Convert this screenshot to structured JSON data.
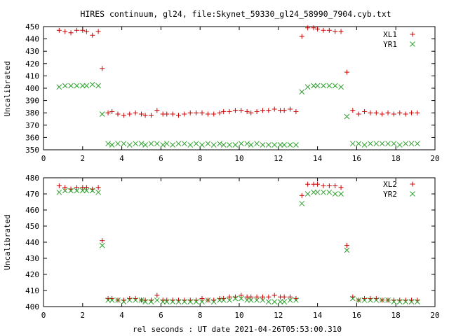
{
  "colors": {
    "series_xl": "#cc0000",
    "series_yr": "#2ca02c",
    "axes": "#000000",
    "background": "#ffffff"
  },
  "chart_data": [
    {
      "type": "scatter",
      "title": "HIRES continuum, gl24, file:Skynet_59330_gl24_58990_7904.cyb.txt",
      "xlabel": "",
      "ylabel": "Uncalibrated",
      "xlim": [
        0,
        20
      ],
      "ylim": [
        350,
        450
      ],
      "xticks": [
        0,
        2,
        4,
        6,
        8,
        10,
        12,
        14,
        16,
        18,
        20
      ],
      "yticks": [
        350,
        360,
        370,
        380,
        390,
        400,
        410,
        420,
        430,
        440,
        450
      ],
      "grid": false,
      "legend_position": "top-right",
      "series": [
        {
          "name": "XL1",
          "marker": "plus",
          "x": [
            0.8,
            1.1,
            1.4,
            1.7,
            2.0,
            2.2,
            2.5,
            2.8,
            3.0,
            3.3,
            3.5,
            3.8,
            4.1,
            4.4,
            4.7,
            5.0,
            5.2,
            5.5,
            5.8,
            6.1,
            6.3,
            6.6,
            6.9,
            7.2,
            7.5,
            7.8,
            8.1,
            8.4,
            8.7,
            9.0,
            9.2,
            9.5,
            9.8,
            10.1,
            10.4,
            10.6,
            10.9,
            11.2,
            11.5,
            11.8,
            12.1,
            12.3,
            12.6,
            12.9,
            13.2,
            13.5,
            13.8,
            14.0,
            14.3,
            14.6,
            14.9,
            15.2,
            15.5,
            15.8,
            16.1,
            16.4,
            16.7,
            17.0,
            17.3,
            17.6,
            17.9,
            18.2,
            18.5,
            18.8,
            19.1
          ],
          "y": [
            447,
            446,
            445,
            447,
            447,
            446,
            443,
            446,
            416,
            380,
            381,
            379,
            378,
            379,
            380,
            379,
            378,
            378,
            382,
            379,
            379,
            379,
            378,
            379,
            380,
            380,
            380,
            379,
            379,
            380,
            381,
            381,
            382,
            382,
            381,
            380,
            381,
            382,
            382,
            383,
            382,
            382,
            383,
            381,
            442,
            449,
            449,
            448,
            447,
            447,
            446,
            446,
            413,
            382,
            379,
            381,
            380,
            380,
            379,
            380,
            379,
            380,
            379,
            380,
            380
          ]
        },
        {
          "name": "YR1",
          "marker": "cross",
          "x": [
            0.8,
            1.1,
            1.4,
            1.7,
            2.0,
            2.2,
            2.5,
            2.8,
            3.0,
            3.3,
            3.5,
            3.8,
            4.1,
            4.4,
            4.7,
            5.0,
            5.2,
            5.5,
            5.8,
            6.1,
            6.3,
            6.6,
            6.9,
            7.2,
            7.5,
            7.8,
            8.1,
            8.4,
            8.7,
            9.0,
            9.2,
            9.5,
            9.8,
            10.1,
            10.4,
            10.6,
            10.9,
            11.2,
            11.5,
            11.8,
            12.1,
            12.3,
            12.6,
            12.9,
            13.2,
            13.5,
            13.8,
            14.0,
            14.3,
            14.6,
            14.9,
            15.2,
            15.5,
            15.8,
            16.1,
            16.4,
            16.7,
            17.0,
            17.3,
            17.6,
            17.9,
            18.2,
            18.5,
            18.8,
            19.1
          ],
          "y": [
            401,
            402,
            402,
            402,
            402,
            402,
            403,
            402,
            379,
            355,
            354,
            355,
            355,
            354,
            355,
            355,
            354,
            355,
            355,
            354,
            355,
            354,
            355,
            355,
            354,
            355,
            354,
            355,
            354,
            355,
            354,
            354,
            354,
            355,
            355,
            354,
            355,
            354,
            354,
            354,
            354,
            354,
            354,
            354,
            397,
            401,
            402,
            402,
            402,
            402,
            402,
            401,
            377,
            355,
            355,
            354,
            355,
            355,
            355,
            355,
            355,
            354,
            355,
            355,
            355
          ]
        }
      ]
    },
    {
      "type": "scatter",
      "title": "",
      "xlabel": "rel seconds : UT date 2021-04-26T05:53:00.310",
      "ylabel": "Uncalibrated",
      "xlim": [
        0,
        20
      ],
      "ylim": [
        400,
        480
      ],
      "xticks": [
        0,
        2,
        4,
        6,
        8,
        10,
        12,
        14,
        16,
        18,
        20
      ],
      "yticks": [
        400,
        410,
        420,
        430,
        440,
        450,
        460,
        470,
        480
      ],
      "grid": false,
      "legend_position": "top-right",
      "series": [
        {
          "name": "XL2",
          "marker": "plus",
          "x": [
            0.8,
            1.1,
            1.4,
            1.7,
            2.0,
            2.2,
            2.5,
            2.8,
            3.0,
            3.3,
            3.5,
            3.8,
            4.1,
            4.4,
            4.7,
            5.0,
            5.2,
            5.5,
            5.8,
            6.1,
            6.3,
            6.6,
            6.9,
            7.2,
            7.5,
            7.8,
            8.1,
            8.4,
            8.7,
            9.0,
            9.2,
            9.5,
            9.8,
            10.1,
            10.4,
            10.6,
            10.9,
            11.2,
            11.5,
            11.8,
            12.1,
            12.3,
            12.6,
            12.9,
            13.2,
            13.5,
            13.8,
            14.0,
            14.3,
            14.6,
            14.9,
            15.2,
            15.5,
            15.8,
            16.1,
            16.4,
            16.7,
            17.0,
            17.3,
            17.6,
            17.9,
            18.2,
            18.5,
            18.8,
            19.1
          ],
          "y": [
            475,
            474,
            473,
            474,
            474,
            474,
            473,
            474,
            441,
            405,
            405,
            404,
            404,
            405,
            405,
            404,
            404,
            404,
            407,
            404,
            404,
            404,
            404,
            404,
            404,
            404,
            405,
            404,
            404,
            405,
            405,
            406,
            406,
            407,
            406,
            406,
            406,
            406,
            406,
            407,
            406,
            406,
            406,
            405,
            469,
            476,
            476,
            476,
            475,
            475,
            475,
            474,
            438,
            406,
            404,
            405,
            405,
            405,
            404,
            404,
            404,
            404,
            404,
            404,
            404
          ]
        },
        {
          "name": "YR2",
          "marker": "cross",
          "x": [
            0.8,
            1.1,
            1.4,
            1.7,
            2.0,
            2.2,
            2.5,
            2.8,
            3.0,
            3.3,
            3.5,
            3.8,
            4.1,
            4.4,
            4.7,
            5.0,
            5.2,
            5.5,
            5.8,
            6.1,
            6.3,
            6.6,
            6.9,
            7.2,
            7.5,
            7.8,
            8.1,
            8.4,
            8.7,
            9.0,
            9.2,
            9.5,
            9.8,
            10.1,
            10.4,
            10.6,
            10.9,
            11.2,
            11.5,
            11.8,
            12.1,
            12.3,
            12.6,
            12.9,
            13.2,
            13.5,
            13.8,
            14.0,
            14.3,
            14.6,
            14.9,
            15.2,
            15.5,
            15.8,
            16.1,
            16.4,
            16.7,
            17.0,
            17.3,
            17.6,
            17.9,
            18.2,
            18.5,
            18.8,
            19.1
          ],
          "y": [
            471,
            472,
            472,
            472,
            472,
            472,
            472,
            471,
            438,
            404,
            404,
            404,
            403,
            404,
            404,
            404,
            403,
            403,
            404,
            403,
            403,
            403,
            403,
            403,
            403,
            403,
            403,
            404,
            403,
            404,
            404,
            404,
            405,
            405,
            404,
            404,
            404,
            404,
            403,
            403,
            403,
            403,
            404,
            404,
            464,
            470,
            471,
            471,
            471,
            471,
            470,
            470,
            435,
            405,
            404,
            404,
            404,
            404,
            404,
            404,
            403,
            403,
            403,
            403,
            403
          ]
        }
      ]
    }
  ]
}
